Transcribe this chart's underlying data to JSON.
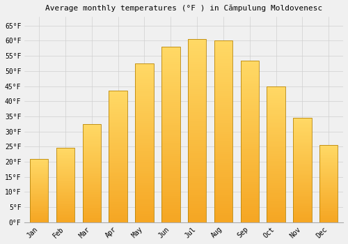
{
  "months": [
    "Jan",
    "Feb",
    "Mar",
    "Apr",
    "May",
    "Jun",
    "Jul",
    "Aug",
    "Sep",
    "Oct",
    "Nov",
    "Dec"
  ],
  "values": [
    21,
    24.5,
    32.5,
    43.5,
    52.5,
    58,
    60.5,
    60,
    53.5,
    45,
    34.5,
    25.5
  ],
  "title": "Average monthly temperatures (°F ) in Cămpulung Moldovenesc",
  "bar_color_bottom": "#F5A623",
  "bar_color_top": "#FFD966",
  "ylim": [
    0,
    68
  ],
  "yticks": [
    0,
    5,
    10,
    15,
    20,
    25,
    30,
    35,
    40,
    45,
    50,
    55,
    60,
    65
  ],
  "ytick_labels": [
    "0°F",
    "5°F",
    "10°F",
    "15°F",
    "20°F",
    "25°F",
    "30°F",
    "35°F",
    "40°F",
    "45°F",
    "50°F",
    "55°F",
    "60°F",
    "65°F"
  ],
  "background_color": "#f0f0f0",
  "grid_color": "#d0d0d0",
  "title_fontsize": 8,
  "tick_fontsize": 7,
  "bar_edge_color": "#b8860b",
  "bar_width": 0.7
}
